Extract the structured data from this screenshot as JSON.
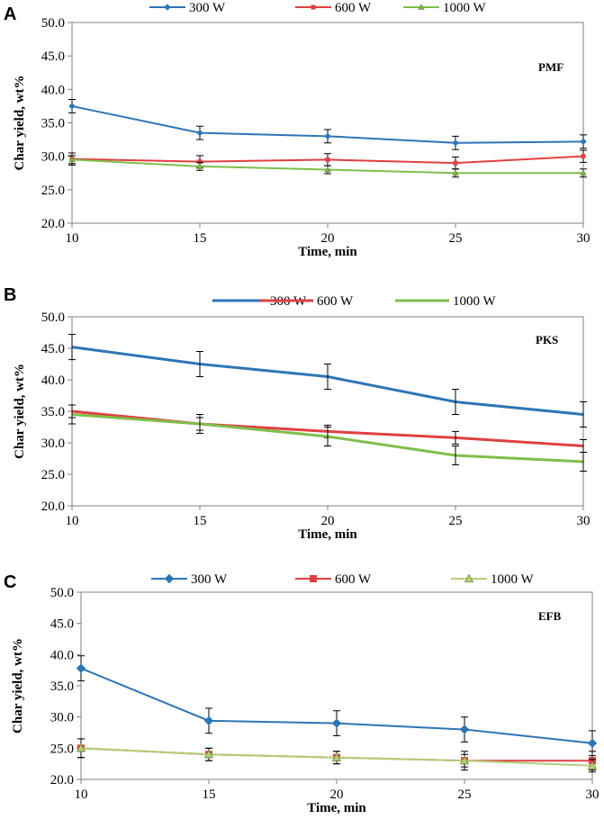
{
  "chart_data": [
    {
      "type": "line",
      "panel_label": "A",
      "sample_label": "PMF",
      "xlabel": "Time, min",
      "ylabel": "Char yield, wt%",
      "x": [
        10,
        15,
        20,
        25,
        30
      ],
      "x_ticks": [
        "10",
        "15",
        "20",
        "25",
        "30"
      ],
      "y_ticks": [
        "20.0",
        "25.0",
        "30.0",
        "35.0",
        "40.0",
        "45.0",
        "50.0"
      ],
      "xlim": [
        10,
        30
      ],
      "ylim": [
        20,
        50
      ],
      "series": [
        {
          "name": "300 W",
          "color": "#2E75B6",
          "marker": "diamond",
          "values": [
            37.5,
            33.5,
            33.0,
            32.0,
            32.2
          ],
          "errors": [
            1.0,
            1.0,
            1.0,
            1.0,
            1.0
          ]
        },
        {
          "name": "600 W",
          "color": "#E04040",
          "marker": "square",
          "values": [
            29.6,
            29.2,
            29.5,
            29.0,
            30.0
          ],
          "errors": [
            0.9,
            0.9,
            0.9,
            0.9,
            0.9
          ]
        },
        {
          "name": "1000 W",
          "color": "#7FBE4B",
          "marker": "triangle",
          "values": [
            29.5,
            28.5,
            28.0,
            27.5,
            27.5
          ],
          "errors": [
            0.6,
            0.6,
            0.6,
            0.6,
            0.6
          ]
        }
      ]
    },
    {
      "type": "line",
      "panel_label": "B",
      "sample_label": "PKS",
      "xlabel": "Time, min",
      "ylabel": "Char yield, wt%",
      "x": [
        10,
        15,
        20,
        25,
        30
      ],
      "x_ticks": [
        "10",
        "15",
        "20",
        "25",
        "30"
      ],
      "y_ticks": [
        "20.0",
        "25.0",
        "30.0",
        "35.0",
        "40.0",
        "45.0",
        "50.0"
      ],
      "xlim": [
        10,
        30
      ],
      "ylim": [
        20,
        50
      ],
      "series": [
        {
          "name": "300 W",
          "color": "#2E75B6",
          "marker": "none",
          "values": [
            45.2,
            42.5,
            40.5,
            36.5,
            34.5
          ],
          "errors": [
            2.0,
            2.0,
            2.0,
            2.0,
            2.0
          ]
        },
        {
          "name": "600 W",
          "color": "#E04040",
          "marker": "none",
          "values": [
            35.0,
            33.0,
            31.8,
            30.8,
            29.5
          ],
          "errors": [
            1.0,
            1.0,
            1.0,
            1.0,
            1.0
          ]
        },
        {
          "name": "1000 W",
          "color": "#7FBE4B",
          "marker": "none",
          "values": [
            34.5,
            33.0,
            31.0,
            28.0,
            27.0
          ],
          "errors": [
            1.5,
            1.5,
            1.5,
            1.5,
            1.5
          ]
        }
      ]
    },
    {
      "type": "line",
      "panel_label": "C",
      "sample_label": "EFB",
      "xlabel": "Time, min",
      "ylabel": "Char yield, wt%",
      "x": [
        10,
        15,
        20,
        25,
        30
      ],
      "x_ticks": [
        "10",
        "15",
        "20",
        "25",
        "30"
      ],
      "y_ticks": [
        "20.0",
        "25.0",
        "30.0",
        "35.0",
        "40.0",
        "45.0",
        "50.0"
      ],
      "xlim": [
        10,
        30
      ],
      "ylim": [
        20,
        50
      ],
      "series": [
        {
          "name": "300 W",
          "color": "#2E75B6",
          "marker": "diamond",
          "values": [
            37.8,
            29.4,
            29.0,
            28.0,
            25.8
          ],
          "errors": [
            2.0,
            2.0,
            2.0,
            2.0,
            2.0
          ]
        },
        {
          "name": "600 W",
          "color": "#E04040",
          "marker": "square",
          "values": [
            25.0,
            24.0,
            23.5,
            23.0,
            23.0
          ],
          "errors": [
            1.5,
            1.0,
            1.0,
            1.5,
            1.5
          ]
        },
        {
          "name": "1000 W",
          "color": "#B4CF7A",
          "marker": "triangle",
          "values": [
            25.0,
            24.0,
            23.5,
            23.0,
            22.2
          ],
          "errors": [
            1.5,
            1.0,
            1.0,
            1.0,
            1.0
          ]
        }
      ]
    }
  ]
}
